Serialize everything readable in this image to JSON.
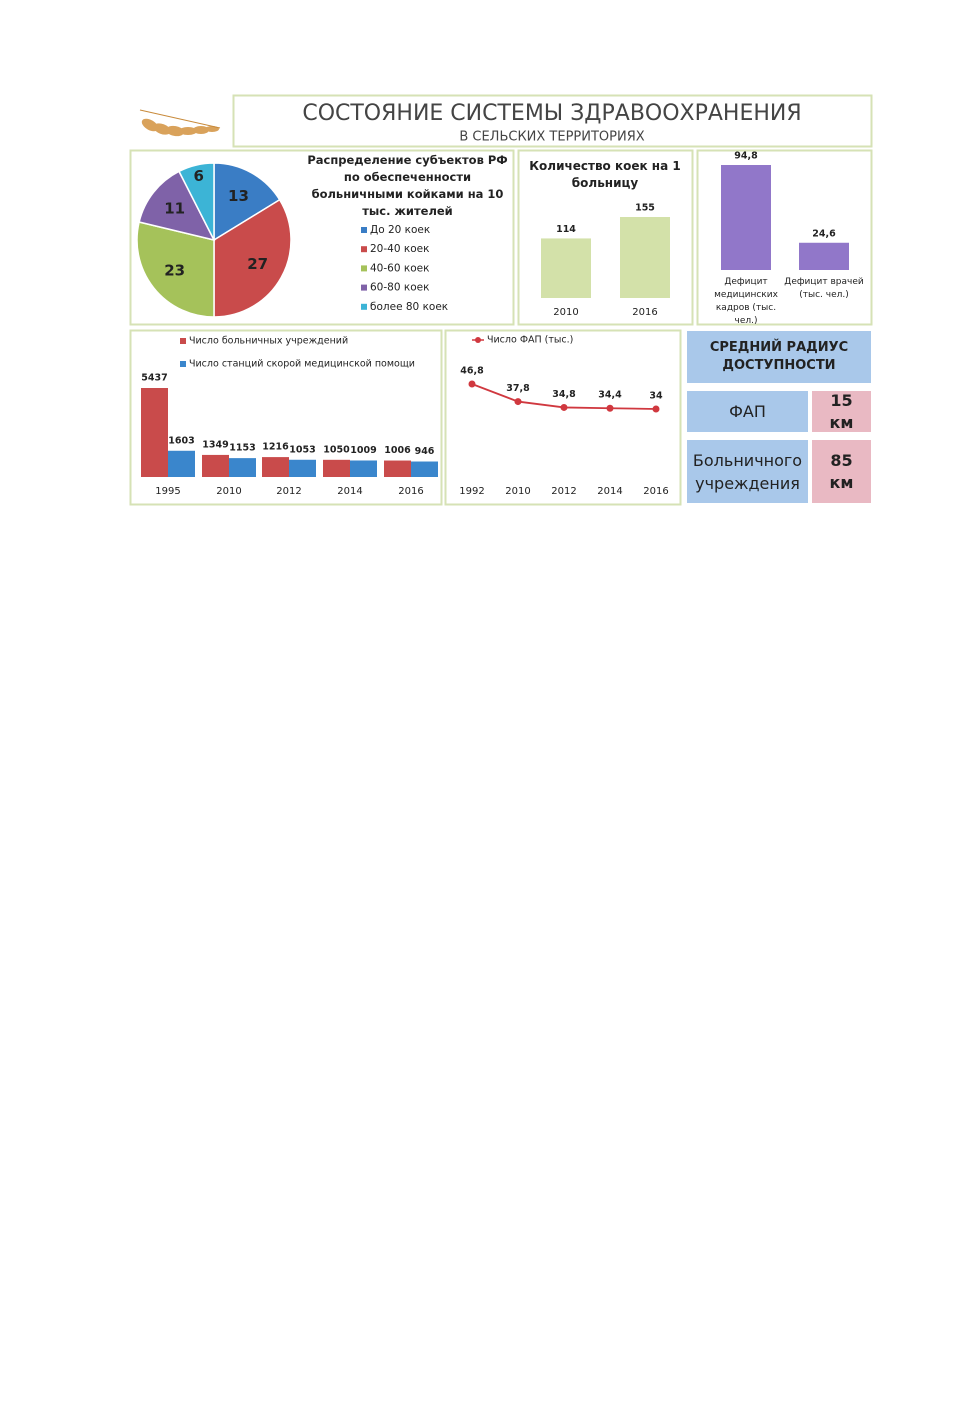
{
  "header": {
    "title": "СОСТОЯНИЕ СИСТЕМЫ ЗДРАВООХРАНЕНИЯ",
    "subtitle": "В СЕЛЬСКИХ ТЕРРИТОРИЯХ"
  },
  "chart_data": [
    {
      "type": "pie",
      "title": "Распределение субъектов РФ по обеспеченности больничными койками на 10 тыс. жителей",
      "categories": [
        "До 20 коек",
        "20-40 коек",
        "40-60 коек",
        "60-80 коек",
        "более 80 коек"
      ],
      "values": [
        13,
        27,
        23,
        11,
        6
      ],
      "colors": [
        "#3a7dc5",
        "#c94b4b",
        "#a5c25a",
        "#7f62a8",
        "#3cb4d6"
      ],
      "legend": "right"
    },
    {
      "type": "bar",
      "title": "Количество коек на 1 больницу",
      "categories": [
        "2010",
        "2016"
      ],
      "values": [
        114,
        155
      ],
      "color": "#d3e1a9"
    },
    {
      "type": "bar",
      "categories": [
        "Дефицит медицинских кадров (тыс. чел.)",
        "Дефицит врачей (тыс. чел.)"
      ],
      "values": [
        94.8,
        24.6
      ],
      "value_labels": [
        "94,8",
        "24,6"
      ],
      "color": "#9177c9"
    },
    {
      "type": "grouped-bar",
      "categories": [
        "1995",
        "2010",
        "2012",
        "2014",
        "2016"
      ],
      "series": [
        {
          "name": "Число больничных учреждений",
          "color": "#c94b4b",
          "values": [
            5437,
            1349,
            1216,
            1050,
            1006
          ]
        },
        {
          "name": "Число станций скорой медицинской помощи",
          "color": "#3a86cc",
          "values": [
            1603,
            1153,
            1053,
            1009,
            946
          ]
        }
      ],
      "legend": "top-left"
    },
    {
      "type": "line",
      "categories": [
        "1992",
        "2010",
        "2012",
        "2014",
        "2016"
      ],
      "series": [
        {
          "name": "Число ФАП (тыс.)",
          "color": "#d0383f",
          "values": [
            46.8,
            37.8,
            34.8,
            34.4,
            34
          ],
          "value_labels": [
            "46,8",
            "37,8",
            "34,8",
            "34,4",
            "34"
          ]
        }
      ],
      "legend": "top-left"
    }
  ],
  "access": {
    "title": "СРЕДНИЙ РАДИУС ДОСТУПНОСТИ",
    "rows": [
      {
        "label": "ФАП",
        "value": "15 км"
      },
      {
        "label": "Больничного учреждения",
        "value": "85 км"
      }
    ]
  }
}
